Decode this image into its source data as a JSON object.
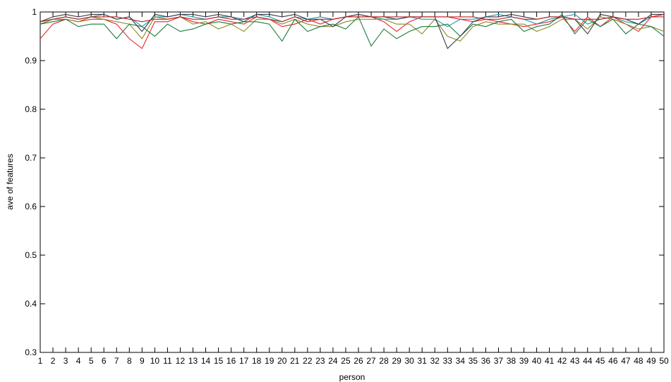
{
  "chart_data": {
    "type": "line",
    "title": "",
    "xlabel": "person",
    "ylabel": "ave of features",
    "xlim": [
      1,
      50
    ],
    "ylim": [
      0.3,
      1
    ],
    "grid": false,
    "legend": "none",
    "x": [
      1,
      2,
      3,
      4,
      5,
      6,
      7,
      8,
      9,
      10,
      11,
      12,
      13,
      14,
      15,
      16,
      17,
      18,
      19,
      20,
      21,
      22,
      23,
      24,
      25,
      26,
      27,
      28,
      29,
      30,
      31,
      32,
      33,
      34,
      35,
      36,
      37,
      38,
      39,
      40,
      41,
      42,
      43,
      44,
      45,
      46,
      47,
      48,
      49,
      50
    ],
    "x_tick_labels": [
      "1",
      "2",
      "3",
      "4",
      "5",
      "6",
      "7",
      "8",
      "9",
      "10",
      "11",
      "12",
      "13",
      "14",
      "15",
      "16",
      "17",
      "18",
      "19",
      "20",
      "21",
      "22",
      "23",
      "24",
      "25",
      "26",
      "27",
      "28",
      "29",
      "30",
      "31",
      "32",
      "33",
      "34",
      "35",
      "36",
      "37",
      "38",
      "39",
      "40",
      "41",
      "42",
      "43",
      "44",
      "45",
      "46",
      "47",
      "48",
      "49",
      "50"
    ],
    "y_ticks": [
      0.3,
      0.4,
      0.5,
      0.6,
      0.7,
      0.8,
      0.9,
      1
    ],
    "y_tick_labels": [
      "0.3",
      "0.4",
      "0.5",
      "0.6",
      "0.7",
      "0.8",
      "0.9",
      "1"
    ],
    "series": [
      {
        "color": "#1a9bb0",
        "values": [
          0.975,
          0.985,
          0.99,
          0.985,
          0.99,
          0.995,
          0.985,
          0.99,
          0.97,
          0.99,
          0.99,
          0.995,
          0.99,
          0.985,
          0.99,
          0.99,
          0.985,
          0.995,
          0.99,
          0.98,
          0.99,
          0.985,
          0.99,
          0.985,
          0.99,
          0.995,
          0.99,
          0.985,
          0.985,
          0.99,
          0.985,
          0.985,
          0.97,
          0.985,
          0.985,
          0.99,
          0.995,
          0.99,
          0.985,
          0.975,
          0.985,
          0.99,
          0.995,
          0.975,
          0.985,
          0.99,
          0.98,
          0.975,
          0.99,
          0.99
        ]
      },
      {
        "color": "#e8242b",
        "values": [
          0.945,
          0.975,
          0.985,
          0.98,
          0.985,
          0.985,
          0.975,
          0.945,
          0.925,
          0.98,
          0.98,
          0.99,
          0.98,
          0.975,
          0.985,
          0.98,
          0.975,
          0.99,
          0.985,
          0.97,
          0.975,
          0.985,
          0.975,
          0.985,
          0.99,
          0.99,
          0.99,
          0.98,
          0.96,
          0.98,
          0.99,
          0.99,
          0.99,
          0.985,
          0.98,
          0.985,
          0.98,
          0.975,
          0.97,
          0.975,
          0.98,
          0.99,
          0.96,
          0.99,
          0.97,
          0.99,
          0.975,
          0.96,
          0.99,
          0.99
        ]
      },
      {
        "color": "#8a8a2a",
        "values": [
          0.975,
          0.985,
          0.985,
          0.98,
          0.99,
          0.985,
          0.98,
          0.975,
          0.945,
          0.99,
          0.985,
          0.99,
          0.975,
          0.98,
          0.965,
          0.975,
          0.96,
          0.985,
          0.985,
          0.975,
          0.985,
          0.975,
          0.97,
          0.97,
          0.98,
          0.985,
          0.985,
          0.985,
          0.975,
          0.975,
          0.955,
          0.985,
          0.95,
          0.94,
          0.97,
          0.98,
          0.975,
          0.975,
          0.975,
          0.96,
          0.97,
          0.985,
          0.985,
          0.965,
          0.99,
          0.985,
          0.975,
          0.965,
          0.97,
          0.96
        ]
      },
      {
        "color": "#1a7a3a",
        "values": [
          0.975,
          0.98,
          0.985,
          0.97,
          0.975,
          0.975,
          0.945,
          0.975,
          0.97,
          0.95,
          0.975,
          0.96,
          0.965,
          0.975,
          0.98,
          0.975,
          0.98,
          0.98,
          0.975,
          0.94,
          0.985,
          0.96,
          0.97,
          0.975,
          0.965,
          0.99,
          0.93,
          0.965,
          0.945,
          0.96,
          0.97,
          0.97,
          0.975,
          0.95,
          0.975,
          0.97,
          0.98,
          0.985,
          0.96,
          0.97,
          0.975,
          0.995,
          0.955,
          0.985,
          0.97,
          0.985,
          0.955,
          0.975,
          0.97,
          0.95
        ]
      },
      {
        "color": "#3a3a4a",
        "values": [
          0.98,
          0.99,
          0.995,
          0.99,
          0.995,
          0.995,
          0.985,
          0.99,
          0.96,
          0.995,
          0.99,
          0.995,
          0.995,
          0.99,
          0.995,
          0.99,
          0.98,
          0.995,
          0.995,
          0.99,
          0.995,
          0.985,
          0.985,
          0.97,
          0.99,
          0.995,
          0.99,
          0.99,
          0.985,
          0.99,
          0.99,
          0.99,
          0.925,
          0.95,
          0.98,
          0.99,
          0.99,
          0.995,
          0.99,
          0.985,
          0.99,
          0.99,
          0.985,
          0.955,
          0.995,
          0.99,
          0.985,
          0.975,
          0.995,
          0.995
        ]
      },
      {
        "color": "#c02020",
        "values": [
          0.98,
          0.985,
          0.99,
          0.985,
          0.99,
          0.99,
          0.99,
          0.985,
          0.98,
          0.985,
          0.985,
          0.99,
          0.985,
          0.985,
          0.99,
          0.985,
          0.985,
          0.99,
          0.985,
          0.98,
          0.99,
          0.98,
          0.985,
          0.985,
          0.99,
          0.99,
          0.99,
          0.99,
          0.99,
          0.99,
          0.99,
          0.99,
          0.99,
          0.99,
          0.99,
          0.985,
          0.985,
          0.99,
          0.985,
          0.985,
          0.99,
          0.99,
          0.985,
          0.985,
          0.985,
          0.99,
          0.985,
          0.985,
          0.99,
          0.995
        ]
      }
    ]
  }
}
